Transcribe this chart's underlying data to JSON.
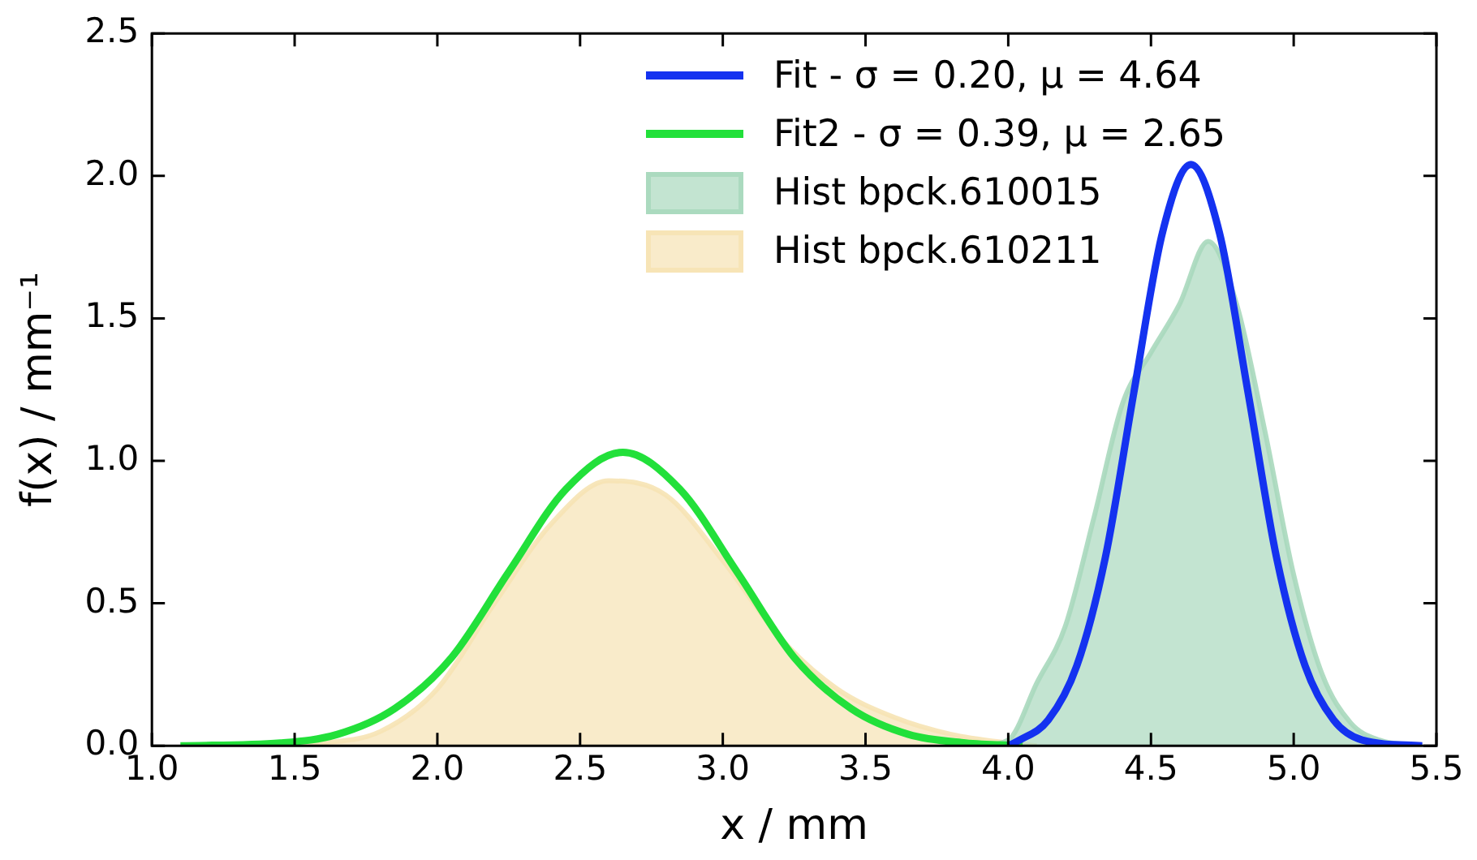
{
  "chart_data": {
    "type": "line",
    "xlabel": "x / mm",
    "ylabel": "f(x) / mm⁻¹",
    "xlim": [
      1.0,
      5.5
    ],
    "xticks": [
      {
        "value": 1.0,
        "label": "1.0"
      },
      {
        "value": 1.5,
        "label": "1.5"
      },
      {
        "value": 2.0,
        "label": "2.0"
      },
      {
        "value": 2.5,
        "label": "2.5"
      },
      {
        "value": 3.0,
        "label": "3.0"
      },
      {
        "value": 3.5,
        "label": "3.5"
      },
      {
        "value": 4.0,
        "label": "4.0"
      },
      {
        "value": 4.5,
        "label": "4.5"
      },
      {
        "value": 5.0,
        "label": "5.0"
      },
      {
        "value": 5.5,
        "label": "5.5"
      }
    ],
    "ylim": [
      0,
      2.5
    ],
    "yticks": [
      {
        "value": 0,
        "label": "0.0"
      },
      {
        "value": 0.5,
        "label": "0.5"
      },
      {
        "value": 1.0,
        "label": "1.0"
      },
      {
        "value": 1.5,
        "label": "1.5"
      },
      {
        "value": 2.0,
        "label": "2.0"
      },
      {
        "value": 2.5,
        "label": "2.5"
      }
    ],
    "grid": false,
    "legend": "top right",
    "marker": "none",
    "series": [
      {
        "name": "Fit - σ = 0.20, μ = 4.64",
        "type": "line",
        "color": "#1432f0",
        "x": [
          4.0,
          4.04,
          4.14,
          4.24,
          4.34,
          4.44,
          4.54,
          4.64,
          4.74,
          4.84,
          4.94,
          5.04,
          5.14,
          5.24,
          5.45
        ],
        "values": [
          0,
          0.02,
          0.09,
          0.28,
          0.66,
          1.24,
          1.8,
          2.04,
          1.8,
          1.24,
          0.66,
          0.28,
          0.09,
          0.02,
          0
        ]
      },
      {
        "name": "Fit2 - σ = 0.39, μ = 2.65",
        "type": "line",
        "color": "#22e03a",
        "x": [
          1.1,
          1.45,
          1.65,
          1.85,
          2.05,
          2.25,
          2.45,
          2.65,
          2.85,
          3.05,
          3.25,
          3.45,
          3.65,
          3.85,
          4.05
        ],
        "values": [
          0,
          0.01,
          0.04,
          0.13,
          0.31,
          0.61,
          0.9,
          1.03,
          0.9,
          0.61,
          0.31,
          0.13,
          0.04,
          0.01,
          0
        ]
      },
      {
        "name": "Hist bpck.610015",
        "type": "area",
        "color": "#a9d8bd",
        "x": [
          3.9,
          4.0,
          4.1,
          4.2,
          4.3,
          4.4,
          4.5,
          4.6,
          4.7,
          4.8,
          4.9,
          5.0,
          5.1,
          5.2,
          5.3,
          5.45
        ],
        "values": [
          0,
          0.02,
          0.22,
          0.42,
          0.8,
          1.2,
          1.38,
          1.55,
          1.77,
          1.55,
          1.1,
          0.6,
          0.25,
          0.08,
          0.02,
          0
        ]
      },
      {
        "name": "Hist bpck.610211",
        "type": "area",
        "color": "#f6e3b4",
        "x": [
          1.1,
          1.4,
          1.6,
          1.8,
          2.0,
          2.2,
          2.4,
          2.6,
          2.8,
          3.0,
          3.2,
          3.4,
          3.6,
          3.8,
          4.0,
          4.1
        ],
        "values": [
          0,
          0,
          0.01,
          0.05,
          0.2,
          0.5,
          0.78,
          0.93,
          0.88,
          0.65,
          0.38,
          0.2,
          0.1,
          0.04,
          0.01,
          0
        ]
      }
    ]
  }
}
